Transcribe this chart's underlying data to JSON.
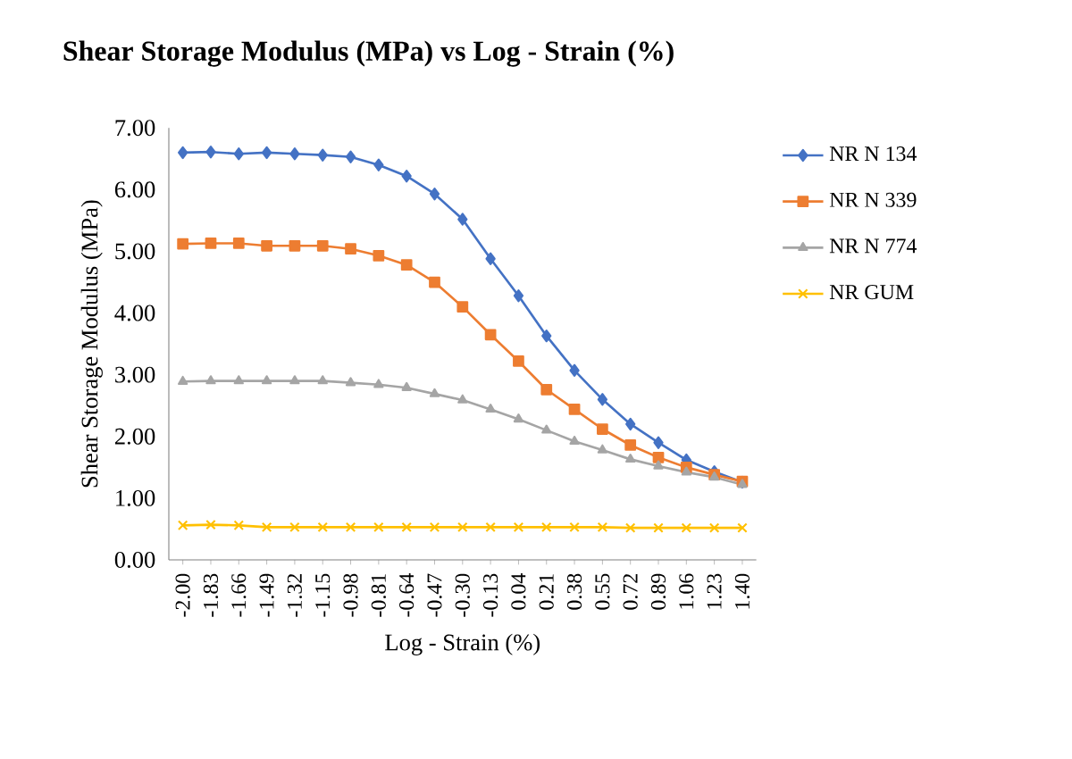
{
  "chart_data": {
    "type": "line",
    "title": "Shear Storage Modulus (MPa) vs  Log - Strain (%)",
    "xlabel": "Log - Strain (%)",
    "ylabel": "Shear Storage Modulus (MPa)",
    "categories": [
      "-2.00",
      "-1.83",
      "-1.66",
      "-1.49",
      "-1.32",
      "-1.15",
      "-0.98",
      "-0.81",
      "-0.64",
      "-0.47",
      "-0.30",
      "-0.13",
      "0.04",
      "0.21",
      "0.38",
      "0.55",
      "0.72",
      "0.89",
      "1.06",
      "1.23",
      "1.40"
    ],
    "series": [
      {
        "name": "NR N 134",
        "color": "#4472c4",
        "marker": "diamond",
        "values": [
          6.6,
          6.61,
          6.58,
          6.6,
          6.58,
          6.56,
          6.53,
          6.4,
          6.22,
          5.93,
          5.52,
          4.88,
          4.28,
          3.63,
          3.07,
          2.6,
          2.2,
          1.9,
          1.62,
          1.43,
          1.26
        ]
      },
      {
        "name": "NR N 339",
        "color": "#ed7d31",
        "marker": "square",
        "values": [
          5.12,
          5.13,
          5.13,
          5.09,
          5.09,
          5.09,
          5.04,
          4.93,
          4.78,
          4.5,
          4.1,
          3.65,
          3.22,
          2.76,
          2.44,
          2.12,
          1.86,
          1.66,
          1.5,
          1.38,
          1.27
        ]
      },
      {
        "name": "NR N 774",
        "color": "#a5a5a5",
        "marker": "triangle",
        "values": [
          2.89,
          2.9,
          2.9,
          2.9,
          2.9,
          2.9,
          2.87,
          2.84,
          2.79,
          2.69,
          2.59,
          2.44,
          2.28,
          2.1,
          1.92,
          1.78,
          1.63,
          1.52,
          1.42,
          1.34,
          1.22
        ]
      },
      {
        "name": "NR GUM",
        "color": "#ffc000",
        "marker": "cross",
        "values": [
          0.56,
          0.57,
          0.56,
          0.53,
          0.53,
          0.53,
          0.53,
          0.53,
          0.53,
          0.53,
          0.53,
          0.53,
          0.53,
          0.53,
          0.53,
          0.53,
          0.52,
          0.52,
          0.52,
          0.52,
          0.52
        ]
      }
    ],
    "ylim": [
      0,
      7
    ],
    "yticks": [
      {
        "value": 0,
        "label": "0.00"
      },
      {
        "value": 1,
        "label": "1.00"
      },
      {
        "value": 2,
        "label": "2.00"
      },
      {
        "value": 3,
        "label": "3.00"
      },
      {
        "value": 4,
        "label": "4.00"
      },
      {
        "value": 5,
        "label": "5.00"
      },
      {
        "value": 6,
        "label": "6.00"
      },
      {
        "value": 7,
        "label": "7.00"
      }
    ],
    "grid": false,
    "legend": "right",
    "line_style": "solid"
  }
}
